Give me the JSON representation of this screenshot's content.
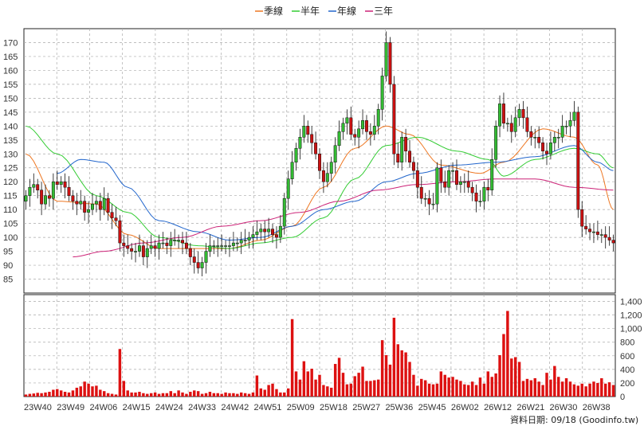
{
  "chart_data": {
    "type": "line",
    "title": "",
    "legend": {
      "placement": "top-center",
      "entries": [
        {
          "name": "季線",
          "color": "#ee7722"
        },
        {
          "name": "半年",
          "color": "#33cc33"
        },
        {
          "name": "年線",
          "color": "#2266cc"
        },
        {
          "name": "三年",
          "color": "#cc2277"
        }
      ]
    },
    "x_tick_labels": [
      "23W40",
      "23W49",
      "24W06",
      "24W15",
      "24W24",
      "24W33",
      "24W42",
      "24W51",
      "25W09",
      "25W18",
      "25W27",
      "25W36",
      "25W45",
      "26W02",
      "26W12",
      "26W21",
      "26W30",
      "26W38"
    ],
    "price_axis": {
      "ylim": [
        80,
        175
      ],
      "ticks": [
        85,
        90,
        95,
        100,
        105,
        110,
        115,
        120,
        125,
        130,
        135,
        140,
        145,
        150,
        155,
        160,
        165,
        170
      ]
    },
    "volume_axis": {
      "ylim": [
        0,
        1500
      ],
      "ticks": [
        0,
        200,
        400,
        600,
        800,
        1000,
        1200,
        1400
      ],
      "tick_labels": [
        "0",
        "200",
        "400",
        "600",
        "800",
        "1,000",
        "1,200",
        "1,400"
      ]
    },
    "grid": true,
    "candle_colors": {
      "up": "#33bb33",
      "down": "#cc1111"
    },
    "volume_color": "#dd1111",
    "closes": [
      115,
      118,
      119,
      117,
      112,
      115,
      114,
      120,
      119,
      120,
      118,
      115,
      113,
      112,
      113,
      109,
      110,
      112,
      113,
      110,
      114,
      109,
      107,
      106,
      98,
      97,
      96,
      95,
      95,
      97,
      93,
      96,
      97,
      96,
      98,
      98,
      97,
      99,
      99,
      99,
      98,
      96,
      93,
      91,
      89,
      91,
      95,
      97,
      97,
      97,
      97,
      97,
      97,
      98,
      98,
      99,
      99,
      100,
      101,
      102,
      103,
      102,
      103,
      101,
      100,
      104,
      114,
      121,
      127,
      132,
      136,
      140,
      137,
      134,
      130,
      124,
      120,
      123,
      127,
      133,
      138,
      141,
      143,
      137,
      136,
      139,
      142,
      138,
      137,
      140,
      146,
      158,
      170,
      155,
      130,
      127,
      136,
      131,
      127,
      124,
      118,
      114,
      114,
      112,
      112,
      125,
      120,
      118,
      124,
      124,
      119,
      120,
      120,
      118,
      116,
      113,
      113,
      118,
      117,
      128,
      140,
      148,
      141,
      141,
      138,
      143,
      146,
      143,
      138,
      136,
      136,
      134,
      131,
      130,
      134,
      136,
      136,
      140,
      140,
      142,
      145,
      110,
      104,
      103,
      102,
      102,
      101,
      101,
      100,
      99,
      98
    ],
    "ma_quarter": [
      [
        0,
        130
      ],
      [
        8,
        113
      ],
      [
        18,
        112
      ],
      [
        26,
        101
      ],
      [
        34,
        96
      ],
      [
        44,
        96
      ],
      [
        52,
        96
      ],
      [
        60,
        99
      ],
      [
        68,
        104
      ],
      [
        76,
        118
      ],
      [
        84,
        132
      ],
      [
        92,
        140
      ],
      [
        98,
        137
      ],
      [
        106,
        126
      ],
      [
        116,
        123
      ],
      [
        122,
        127
      ],
      [
        132,
        139
      ],
      [
        140,
        136
      ],
      [
        146,
        126
      ],
      [
        150,
        110
      ]
    ],
    "ma_half": [
      [
        0,
        140
      ],
      [
        8,
        130
      ],
      [
        18,
        115
      ],
      [
        26,
        109
      ],
      [
        34,
        100
      ],
      [
        44,
        97
      ],
      [
        52,
        96
      ],
      [
        60,
        98
      ],
      [
        68,
        100
      ],
      [
        76,
        107
      ],
      [
        84,
        121
      ],
      [
        92,
        133
      ],
      [
        100,
        136
      ],
      [
        110,
        131
      ],
      [
        118,
        128
      ],
      [
        122,
        122
      ],
      [
        130,
        128
      ],
      [
        140,
        132
      ],
      [
        146,
        130
      ],
      [
        150,
        125
      ]
    ],
    "ma_year": [
      [
        8,
        123
      ],
      [
        14,
        128
      ],
      [
        20,
        127
      ],
      [
        26,
        118
      ],
      [
        34,
        106
      ],
      [
        44,
        102
      ],
      [
        52,
        99
      ],
      [
        60,
        100
      ],
      [
        68,
        104
      ],
      [
        76,
        110
      ],
      [
        84,
        113
      ],
      [
        92,
        120
      ],
      [
        100,
        123
      ],
      [
        110,
        126
      ],
      [
        120,
        127
      ],
      [
        130,
        129
      ],
      [
        140,
        133
      ],
      [
        146,
        127
      ],
      [
        150,
        124
      ]
    ],
    "ma_three_year": [
      [
        12,
        93
      ],
      [
        20,
        95
      ],
      [
        30,
        98
      ],
      [
        40,
        100
      ],
      [
        50,
        104
      ],
      [
        60,
        106
      ],
      [
        70,
        109
      ],
      [
        80,
        113
      ],
      [
        90,
        117
      ],
      [
        100,
        119
      ],
      [
        110,
        120
      ],
      [
        120,
        121
      ],
      [
        130,
        121
      ],
      [
        140,
        118
      ],
      [
        150,
        117
      ]
    ],
    "volumes": [
      30,
      40,
      45,
      55,
      50,
      60,
      70,
      100,
      110,
      90,
      70,
      60,
      90,
      130,
      150,
      220,
      190,
      150,
      160,
      100,
      80,
      50,
      40,
      30,
      700,
      230,
      90,
      60,
      60,
      70,
      50,
      40,
      50,
      60,
      40,
      50,
      50,
      80,
      50,
      90,
      60,
      40,
      70,
      90,
      80,
      40,
      50,
      70,
      50,
      50,
      40,
      60,
      50,
      50,
      40,
      60,
      50,
      40,
      60,
      310,
      120,
      100,
      170,
      190,
      110,
      60,
      60,
      120,
      1140,
      370,
      250,
      520,
      370,
      410,
      250,
      320,
      170,
      150,
      130,
      480,
      570,
      350,
      180,
      190,
      300,
      350,
      440,
      230,
      230,
      240,
      250,
      830,
      610,
      470,
      1160,
      770,
      680,
      650,
      510,
      320,
      160,
      260,
      240,
      190,
      180,
      190,
      370,
      320,
      280,
      290,
      250,
      230,
      180,
      170,
      220,
      170,
      280,
      190,
      370,
      290,
      340,
      610,
      920,
      1260,
      560,
      580,
      510,
      230,
      260,
      240,
      270,
      220,
      170,
      350,
      250,
      450,
      290,
      220,
      270,
      220,
      180,
      160,
      190,
      150,
      190,
      220,
      200,
      270,
      190,
      210,
      170
    ]
  }
}
